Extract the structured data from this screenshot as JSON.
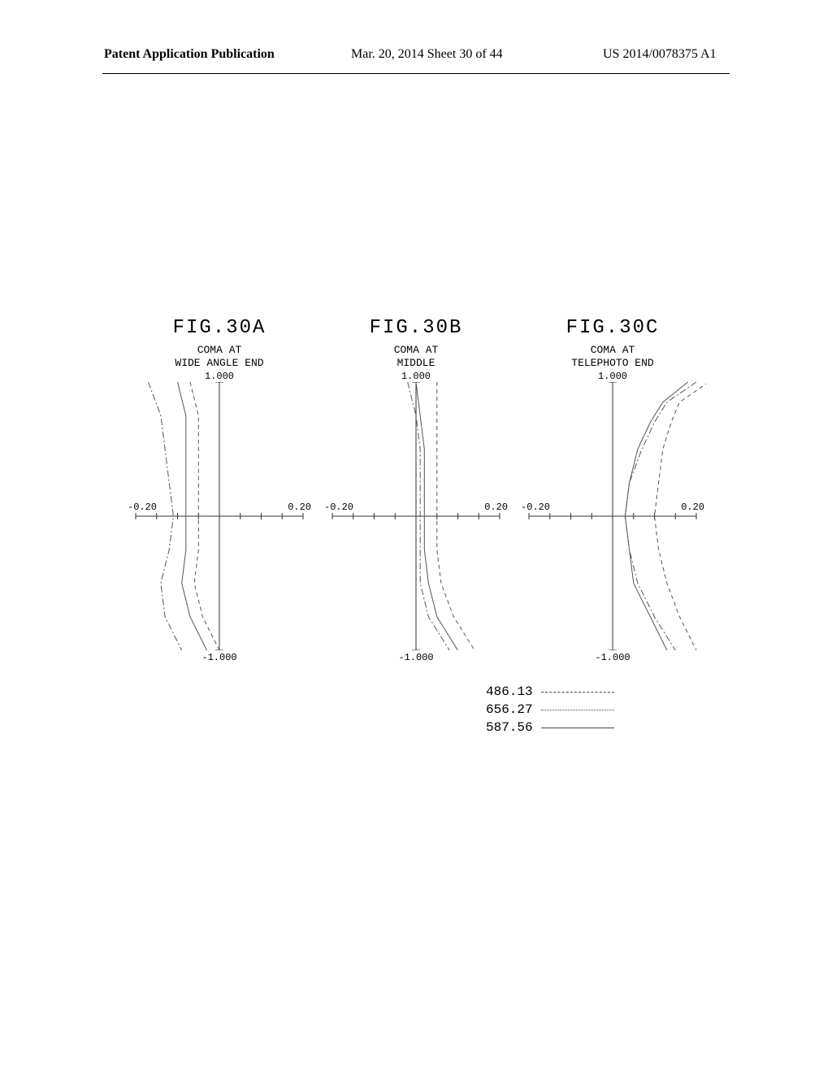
{
  "header": {
    "left": "Patent Application Publication",
    "mid": "Mar. 20, 2014  Sheet 30 of 44",
    "right": "US 2014/0078375 A1"
  },
  "legend": {
    "items": [
      {
        "wavelength": "486.13",
        "style": "dashdot"
      },
      {
        "wavelength": "656.27",
        "style": "dash"
      },
      {
        "wavelength": "587.56",
        "style": "solid"
      }
    ]
  },
  "figures": [
    {
      "title": "FIG.30A",
      "subtitle": "COMA AT\nWIDE ANGLE END",
      "y_top": "1.000",
      "y_bottom": "-1.000",
      "x_left": "-0.20",
      "x_right": "0.20",
      "xlim": [
        -0.2,
        0.2
      ],
      "ylim": [
        -1.0,
        1.0
      ],
      "xtick_step": 0.05,
      "line_color": "#555555",
      "background_color": "#ffffff",
      "curves": {
        "486.13": {
          "style": "dashdot",
          "points": [
            [
              -0.17,
              1.0
            ],
            [
              -0.14,
              0.75
            ],
            [
              -0.13,
              0.5
            ],
            [
              -0.12,
              0.25
            ],
            [
              -0.11,
              0.0
            ],
            [
              -0.12,
              -0.25
            ],
            [
              -0.14,
              -0.5
            ],
            [
              -0.13,
              -0.75
            ],
            [
              -0.09,
              -1.0
            ]
          ]
        },
        "656.27": {
          "style": "dash",
          "points": [
            [
              -0.07,
              1.0
            ],
            [
              -0.05,
              0.75
            ],
            [
              -0.05,
              0.5
            ],
            [
              -0.05,
              0.25
            ],
            [
              -0.05,
              0.0
            ],
            [
              -0.05,
              -0.25
            ],
            [
              -0.06,
              -0.5
            ],
            [
              -0.04,
              -0.75
            ],
            [
              0.0,
              -1.0
            ]
          ]
        },
        "587.56": {
          "style": "solid",
          "points": [
            [
              -0.1,
              1.0
            ],
            [
              -0.08,
              0.75
            ],
            [
              -0.08,
              0.5
            ],
            [
              -0.08,
              0.25
            ],
            [
              -0.08,
              0.0
            ],
            [
              -0.08,
              -0.25
            ],
            [
              -0.09,
              -0.5
            ],
            [
              -0.07,
              -0.75
            ],
            [
              -0.03,
              -1.0
            ]
          ]
        }
      }
    },
    {
      "title": "FIG.30B",
      "subtitle": "COMA AT\nMIDDLE",
      "y_top": "1.000",
      "y_bottom": "-1.000",
      "x_left": "-0.20",
      "x_right": "0.20",
      "xlim": [
        -0.2,
        0.2
      ],
      "ylim": [
        -1.0,
        1.0
      ],
      "xtick_step": 0.05,
      "line_color": "#555555",
      "background_color": "#ffffff",
      "curves": {
        "486.13": {
          "style": "dashdot",
          "points": [
            [
              -0.02,
              1.0
            ],
            [
              0.0,
              0.75
            ],
            [
              0.01,
              0.5
            ],
            [
              0.01,
              0.25
            ],
            [
              0.01,
              0.0
            ],
            [
              0.01,
              -0.25
            ],
            [
              0.01,
              -0.5
            ],
            [
              0.03,
              -0.75
            ],
            [
              0.08,
              -1.0
            ]
          ]
        },
        "656.27": {
          "style": "dash",
          "points": [
            [
              0.05,
              1.0
            ],
            [
              0.05,
              0.75
            ],
            [
              0.05,
              0.5
            ],
            [
              0.05,
              0.25
            ],
            [
              0.05,
              0.0
            ],
            [
              0.05,
              -0.25
            ],
            [
              0.06,
              -0.5
            ],
            [
              0.09,
              -0.75
            ],
            [
              0.14,
              -1.0
            ]
          ]
        },
        "587.56": {
          "style": "solid",
          "points": [
            [
              0.0,
              1.0
            ],
            [
              0.01,
              0.75
            ],
            [
              0.02,
              0.5
            ],
            [
              0.02,
              0.25
            ],
            [
              0.02,
              0.0
            ],
            [
              0.02,
              -0.25
            ],
            [
              0.03,
              -0.5
            ],
            [
              0.05,
              -0.75
            ],
            [
              0.1,
              -1.0
            ]
          ]
        }
      }
    },
    {
      "title": "FIG.30C",
      "subtitle": "COMA AT\nTELEPHOTO END",
      "y_top": "1.000",
      "y_bottom": "-1.000",
      "x_left": "-0.20",
      "x_right": "0.20",
      "xlim": [
        -0.2,
        0.2
      ],
      "ylim": [
        -1.0,
        1.0
      ],
      "xtick_step": 0.05,
      "line_color": "#555555",
      "background_color": "#ffffff",
      "curves": {
        "486.13": {
          "style": "dashdot",
          "points": [
            [
              0.2,
              1.0
            ],
            [
              0.13,
              0.85
            ],
            [
              0.1,
              0.7
            ],
            [
              0.07,
              0.5
            ],
            [
              0.04,
              0.25
            ],
            [
              0.03,
              0.0
            ],
            [
              0.04,
              -0.25
            ],
            [
              0.06,
              -0.5
            ],
            [
              0.1,
              -0.75
            ],
            [
              0.15,
              -1.0
            ]
          ]
        },
        "656.27": {
          "style": "dash",
          "points": [
            [
              0.23,
              1.0
            ],
            [
              0.16,
              0.85
            ],
            [
              0.14,
              0.7
            ],
            [
              0.12,
              0.5
            ],
            [
              0.11,
              0.25
            ],
            [
              0.1,
              0.0
            ],
            [
              0.11,
              -0.25
            ],
            [
              0.13,
              -0.5
            ],
            [
              0.16,
              -0.75
            ],
            [
              0.2,
              -1.0
            ]
          ]
        },
        "587.56": {
          "style": "solid",
          "points": [
            [
              0.18,
              1.0
            ],
            [
              0.12,
              0.85
            ],
            [
              0.09,
              0.7
            ],
            [
              0.06,
              0.5
            ],
            [
              0.04,
              0.25
            ],
            [
              0.03,
              0.0
            ],
            [
              0.04,
              -0.25
            ],
            [
              0.05,
              -0.5
            ],
            [
              0.09,
              -0.75
            ],
            [
              0.13,
              -1.0
            ]
          ]
        }
      }
    }
  ]
}
